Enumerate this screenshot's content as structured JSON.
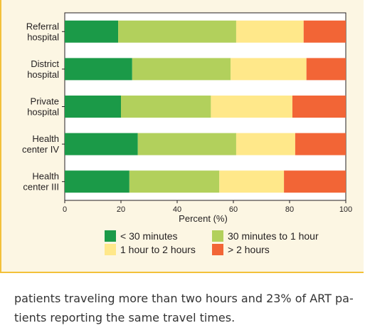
{
  "chart_data": {
    "type": "bar",
    "orientation": "horizontal",
    "stacked": true,
    "categories": [
      [
        "Referral",
        "hospital"
      ],
      [
        "District",
        "hospital"
      ],
      [
        "Private",
        "hospital"
      ],
      [
        "Health",
        "center IV"
      ],
      [
        "Health",
        "center III"
      ]
    ],
    "series": [
      {
        "name": "< 30 minutes",
        "color": "#1b9a48",
        "values": [
          19,
          24,
          20,
          26,
          23
        ]
      },
      {
        "name": "30 minutes to 1 hour",
        "color": "#b2d05c",
        "values": [
          42,
          35,
          32,
          35,
          32
        ]
      },
      {
        "name": "1 hour to 2 hours",
        "color": "#ffe88a",
        "values": [
          24,
          27,
          29,
          21,
          23
        ]
      },
      {
        "name": "> 2 hours",
        "color": "#f26536",
        "values": [
          15,
          14,
          19,
          18,
          22
        ]
      }
    ],
    "xlabel": "Percent (%)",
    "xlim": [
      0,
      100
    ],
    "xticks": [
      0,
      20,
      40,
      60,
      80,
      100
    ],
    "legend_position": "bottom"
  },
  "caption": {
    "line1": "patients traveling more than two hours and 23% of ART pa-",
    "line2": "tients reporting the same travel times."
  }
}
